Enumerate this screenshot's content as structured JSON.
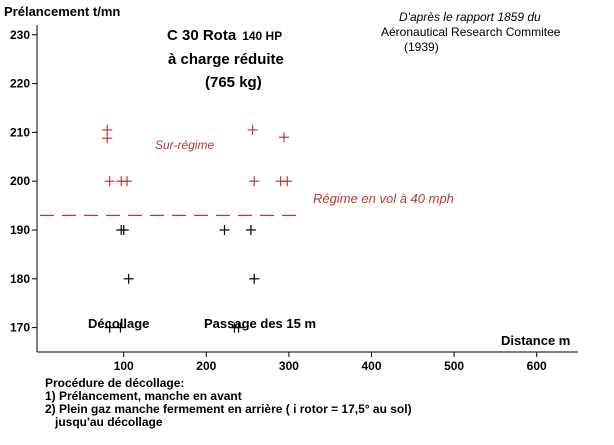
{
  "chart_data": {
    "type": "scatter",
    "title_lines": [
      "C 30  Rota",
      "140 HP",
      "à  charge réduite",
      "(765 kg)"
    ],
    "source_lines": [
      "D'après le rapport 1859 du",
      "Aéronautical Research Commitee",
      "(1939)"
    ],
    "ylabel": "Prélancement  t/mn",
    "xlabel": "Distance  m",
    "xlim": [
      -5,
      650
    ],
    "ylim": [
      165,
      232
    ],
    "xticks": [
      100,
      200,
      300,
      400,
      500,
      600
    ],
    "yticks": [
      170,
      180,
      190,
      200,
      210,
      220,
      230
    ],
    "grid": false,
    "colors": {
      "axis": "#000000",
      "red": "#c0392b",
      "black": "#000000"
    },
    "series": [
      {
        "color": "#c0392b",
        "points": [
          {
            "x": 80,
            "y": 210.5
          },
          {
            "x": 80,
            "y": 208.8
          },
          {
            "x": 83,
            "y": 200
          },
          {
            "x": 97,
            "y": 200
          },
          {
            "x": 104,
            "y": 200
          },
          {
            "x": 256,
            "y": 210.5
          },
          {
            "x": 258,
            "y": 200
          },
          {
            "x": 294,
            "y": 209
          },
          {
            "x": 290,
            "y": 200
          },
          {
            "x": 298,
            "y": 200
          }
        ]
      },
      {
        "color": "#000000",
        "points": [
          {
            "x": 97,
            "y": 190
          },
          {
            "x": 100,
            "y": 190
          },
          {
            "x": 106,
            "y": 180
          },
          {
            "x": 83,
            "y": 170
          },
          {
            "x": 96,
            "y": 170
          },
          {
            "x": 222,
            "y": 190
          },
          {
            "x": 254,
            "y": 190
          },
          {
            "x": 258,
            "y": 180
          },
          {
            "x": 234,
            "y": 170
          },
          {
            "x": 239,
            "y": 170
          }
        ]
      }
    ],
    "reference_line": {
      "y": 193,
      "style": "dashed",
      "color": "#c0392b",
      "label": "Régime en vol à 40 mph"
    },
    "annotations": {
      "surregime": "Sur-régime",
      "decollage": "Décollage",
      "passage": "Passage des 15 m"
    },
    "procedure": {
      "heading": "Procédure de décollage:",
      "step1": "1) Prélancement, manche en avant",
      "step2": "2) Plein gaz  manche fermement en arrière    ( i rotor = 17,5° au sol)",
      "step2_cont": "jusqu'au décollage"
    }
  }
}
